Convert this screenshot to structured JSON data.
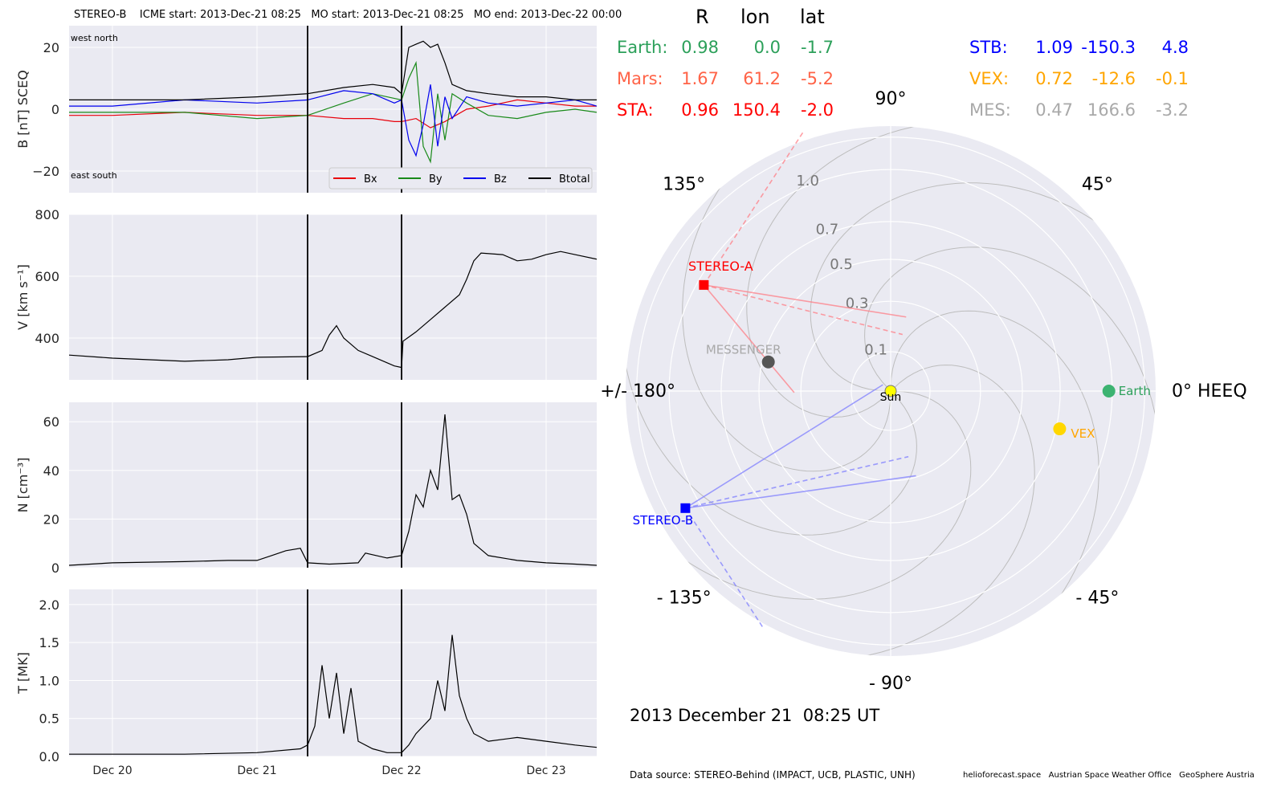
{
  "header_text": "STEREO-B    ICME start: 2013-Dec-21 08:25   MO start: 2013-Dec-21 08:25   MO end: 2013-Dec-22 00:00",
  "table": {
    "columns": [
      "R",
      "lon",
      "lat"
    ],
    "rows": [
      {
        "name": "Earth:",
        "r": "0.98",
        "lon": "0.0",
        "lat": "-1.7",
        "color": "#2ca05a"
      },
      {
        "name": "Mars:",
        "r": "1.67",
        "lon": "61.2",
        "lat": "-5.2",
        "color": "#ff6347"
      },
      {
        "name": "STA:",
        "r": "0.96",
        "lon": "150.4",
        "lat": "-2.0",
        "color": "#ff0000"
      },
      {
        "name": "STB:",
        "r": "1.09",
        "lon": "-150.3",
        "lat": "4.8",
        "color": "#0000ff"
      },
      {
        "name": "VEX:",
        "r": "0.72",
        "lon": "-12.6",
        "lat": "-0.1",
        "color": "#ffa500"
      },
      {
        "name": "MES:",
        "r": "0.47",
        "lon": "166.6",
        "lat": "-3.2",
        "color": "#a9a9a9"
      }
    ]
  },
  "date_label": "2013 December 21  08:25 UT",
  "footer": {
    "source": "Data source: STEREO-Behind (IMPACT, UCB, PLASTIC, UNH)",
    "credits": "helioforecast.space   Austrian Space Weather Office   GeoSphere Austria"
  },
  "chart_data": [
    {
      "type": "line",
      "panel": "magnetic field",
      "ylabel": "B [nT] SCEQ",
      "ylim": [
        -27,
        27
      ],
      "yticks": [
        {
          "v": 20,
          "t": "20"
        },
        {
          "v": 0,
          "t": "0"
        },
        {
          "v": -20,
          "t": "−20"
        }
      ],
      "xlim": [
        -0.3,
        3.35
      ],
      "xticks": [
        {
          "v": 0,
          "t": "Dec 20"
        },
        {
          "v": 1,
          "t": "Dec 21"
        },
        {
          "v": 2,
          "t": "Dec 22"
        },
        {
          "v": 3,
          "t": "Dec 23"
        }
      ],
      "vlines": [
        1.35,
        2.0
      ],
      "corner_labels": {
        "top_left": "west    north",
        "bottom_left": "east    south"
      },
      "legend": [
        "Bx",
        "By",
        "Bz",
        "Btotal"
      ],
      "series": [
        {
          "name": "Bx",
          "color": "#e8000b",
          "points": [
            [
              -0.3,
              -2
            ],
            [
              0,
              -2
            ],
            [
              0.5,
              -1
            ],
            [
              1.0,
              -2
            ],
            [
              1.35,
              -2
            ],
            [
              1.6,
              -3
            ],
            [
              1.8,
              -3
            ],
            [
              1.95,
              -4
            ],
            [
              2.0,
              -4
            ],
            [
              2.1,
              -3
            ],
            [
              2.2,
              -6
            ],
            [
              2.3,
              -4
            ],
            [
              2.45,
              0
            ],
            [
              2.6,
              1
            ],
            [
              2.8,
              3
            ],
            [
              3.0,
              2
            ],
            [
              3.2,
              1
            ],
            [
              3.35,
              1
            ]
          ]
        },
        {
          "name": "By",
          "color": "#1a8a1a",
          "points": [
            [
              -0.3,
              -1
            ],
            [
              0,
              -1
            ],
            [
              0.5,
              -1
            ],
            [
              1.0,
              -3
            ],
            [
              1.35,
              -2
            ],
            [
              1.6,
              2
            ],
            [
              1.8,
              5
            ],
            [
              2.0,
              3
            ],
            [
              2.05,
              10
            ],
            [
              2.1,
              15
            ],
            [
              2.15,
              -12
            ],
            [
              2.2,
              -17
            ],
            [
              2.25,
              5
            ],
            [
              2.3,
              -10
            ],
            [
              2.35,
              5
            ],
            [
              2.45,
              2
            ],
            [
              2.6,
              -2
            ],
            [
              2.8,
              -3
            ],
            [
              3.0,
              -1
            ],
            [
              3.2,
              0
            ],
            [
              3.35,
              -1
            ]
          ]
        },
        {
          "name": "Bz",
          "color": "#0000ee",
          "points": [
            [
              -0.3,
              1
            ],
            [
              0,
              1
            ],
            [
              0.5,
              3
            ],
            [
              1.0,
              2
            ],
            [
              1.35,
              3
            ],
            [
              1.6,
              6
            ],
            [
              1.8,
              5
            ],
            [
              1.95,
              2
            ],
            [
              2.0,
              3
            ],
            [
              2.05,
              -10
            ],
            [
              2.1,
              -15
            ],
            [
              2.15,
              -5
            ],
            [
              2.2,
              8
            ],
            [
              2.25,
              -12
            ],
            [
              2.3,
              4
            ],
            [
              2.35,
              -3
            ],
            [
              2.45,
              4
            ],
            [
              2.6,
              2
            ],
            [
              2.8,
              1
            ],
            [
              3.0,
              2
            ],
            [
              3.2,
              3
            ],
            [
              3.35,
              1
            ]
          ]
        },
        {
          "name": "Btotal",
          "color": "#000000",
          "points": [
            [
              -0.3,
              3
            ],
            [
              0,
              3
            ],
            [
              0.5,
              3
            ],
            [
              1.0,
              4
            ],
            [
              1.35,
              5
            ],
            [
              1.6,
              7
            ],
            [
              1.8,
              8
            ],
            [
              1.95,
              7
            ],
            [
              2.0,
              5
            ],
            [
              2.05,
              20
            ],
            [
              2.1,
              21
            ],
            [
              2.15,
              22
            ],
            [
              2.2,
              20
            ],
            [
              2.25,
              21
            ],
            [
              2.3,
              15
            ],
            [
              2.35,
              8
            ],
            [
              2.45,
              6
            ],
            [
              2.6,
              5
            ],
            [
              2.8,
              4
            ],
            [
              3.0,
              4
            ],
            [
              3.2,
              3
            ],
            [
              3.35,
              3
            ]
          ]
        }
      ]
    },
    {
      "type": "line",
      "panel": "speed",
      "ylabel": "V [km s⁻¹]",
      "ylim": [
        265,
        800
      ],
      "yticks": [
        {
          "v": 800,
          "t": "800"
        },
        {
          "v": 600,
          "t": "600"
        },
        {
          "v": 400,
          "t": "400"
        }
      ],
      "xlim": [
        -0.3,
        3.35
      ],
      "vlines": [
        1.35,
        2.0
      ],
      "series": [
        {
          "name": "V",
          "color": "#000000",
          "points": [
            [
              -0.3,
              345
            ],
            [
              0,
              335
            ],
            [
              0.5,
              325
            ],
            [
              0.8,
              330
            ],
            [
              1.0,
              338
            ],
            [
              1.35,
              340
            ],
            [
              1.45,
              360
            ],
            [
              1.5,
              410
            ],
            [
              1.55,
              440
            ],
            [
              1.6,
              400
            ],
            [
              1.7,
              360
            ],
            [
              1.8,
              340
            ],
            [
              1.9,
              320
            ],
            [
              1.95,
              310
            ],
            [
              2.0,
              305
            ],
            [
              2.01,
              390
            ],
            [
              2.1,
              420
            ],
            [
              2.2,
              460
            ],
            [
              2.3,
              500
            ],
            [
              2.4,
              540
            ],
            [
              2.45,
              590
            ],
            [
              2.5,
              650
            ],
            [
              2.55,
              675
            ],
            [
              2.7,
              670
            ],
            [
              2.8,
              650
            ],
            [
              2.9,
              655
            ],
            [
              3.0,
              670
            ],
            [
              3.1,
              680
            ],
            [
              3.2,
              670
            ],
            [
              3.35,
              655
            ]
          ]
        }
      ]
    },
    {
      "type": "line",
      "panel": "density",
      "ylabel": "N [cm⁻³]",
      "ylim": [
        0,
        68
      ],
      "yticks": [
        {
          "v": 60,
          "t": "60"
        },
        {
          "v": 40,
          "t": "40"
        },
        {
          "v": 20,
          "t": "20"
        },
        {
          "v": 0,
          "t": "0"
        }
      ],
      "xlim": [
        -0.3,
        3.35
      ],
      "vlines": [
        1.35,
        2.0
      ],
      "series": [
        {
          "name": "N",
          "color": "#000000",
          "points": [
            [
              -0.3,
              1
            ],
            [
              0,
              2
            ],
            [
              0.5,
              2.5
            ],
            [
              0.8,
              3
            ],
            [
              1.0,
              3
            ],
            [
              1.1,
              5
            ],
            [
              1.2,
              7
            ],
            [
              1.3,
              8
            ],
            [
              1.35,
              2
            ],
            [
              1.5,
              1.5
            ],
            [
              1.7,
              2
            ],
            [
              1.75,
              6
            ],
            [
              1.9,
              4
            ],
            [
              2.0,
              5
            ],
            [
              2.05,
              15
            ],
            [
              2.1,
              30
            ],
            [
              2.15,
              25
            ],
            [
              2.2,
              40
            ],
            [
              2.25,
              32
            ],
            [
              2.3,
              63
            ],
            [
              2.35,
              28
            ],
            [
              2.4,
              30
            ],
            [
              2.45,
              22
            ],
            [
              2.5,
              10
            ],
            [
              2.6,
              5
            ],
            [
              2.8,
              3
            ],
            [
              3.0,
              2
            ],
            [
              3.2,
              1.5
            ],
            [
              3.35,
              1
            ]
          ]
        }
      ]
    },
    {
      "type": "line",
      "panel": "temperature",
      "ylabel": "T [MK]",
      "ylim": [
        0,
        2.2
      ],
      "yticks": [
        {
          "v": 2.0,
          "t": "2.0"
        },
        {
          "v": 1.5,
          "t": "1.5"
        },
        {
          "v": 1.0,
          "t": "1.0"
        },
        {
          "v": 0.5,
          "t": "0.5"
        },
        {
          "v": 0.0,
          "t": "0.0"
        }
      ],
      "xlim": [
        -0.3,
        3.35
      ],
      "xticks": [
        {
          "v": 0,
          "t": "Dec 20"
        },
        {
          "v": 1,
          "t": "Dec 21"
        },
        {
          "v": 2,
          "t": "Dec 22"
        },
        {
          "v": 3,
          "t": "Dec 23"
        }
      ],
      "vlines": [
        1.35,
        2.0
      ],
      "series": [
        {
          "name": "T",
          "color": "#000000",
          "points": [
            [
              -0.3,
              0.03
            ],
            [
              0,
              0.03
            ],
            [
              0.5,
              0.03
            ],
            [
              1.0,
              0.05
            ],
            [
              1.3,
              0.1
            ],
            [
              1.35,
              0.15
            ],
            [
              1.4,
              0.4
            ],
            [
              1.45,
              1.2
            ],
            [
              1.5,
              0.5
            ],
            [
              1.55,
              1.1
            ],
            [
              1.6,
              0.3
            ],
            [
              1.65,
              0.9
            ],
            [
              1.7,
              0.2
            ],
            [
              1.8,
              0.1
            ],
            [
              1.9,
              0.05
            ],
            [
              2.0,
              0.05
            ],
            [
              2.05,
              0.15
            ],
            [
              2.1,
              0.3
            ],
            [
              2.2,
              0.5
            ],
            [
              2.25,
              1.0
            ],
            [
              2.3,
              0.6
            ],
            [
              2.35,
              1.6
            ],
            [
              2.4,
              0.8
            ],
            [
              2.45,
              0.5
            ],
            [
              2.5,
              0.3
            ],
            [
              2.6,
              0.2
            ],
            [
              2.8,
              0.25
            ],
            [
              3.0,
              0.2
            ],
            [
              3.2,
              0.15
            ],
            [
              3.35,
              0.12
            ]
          ]
        }
      ]
    },
    {
      "type": "scatter",
      "panel": "polar",
      "title": "0° HEEQ",
      "rticks": [
        {
          "v": 0.1,
          "t": "0.1"
        },
        {
          "v": 0.3,
          "t": "0.3"
        },
        {
          "v": 0.5,
          "t": "0.5"
        },
        {
          "v": 0.7,
          "t": "0.7"
        },
        {
          "v": 1.0,
          "t": "1.0"
        }
      ],
      "angle_labels": [
        {
          "deg": 0,
          "t": "0° HEEQ"
        },
        {
          "deg": 45,
          "t": "45°"
        },
        {
          "deg": 90,
          "t": "90°"
        },
        {
          "deg": 135,
          "t": "135°"
        },
        {
          "deg": 180,
          "t": "+/- 180°"
        },
        {
          "deg": -135,
          "t": "- 135°"
        },
        {
          "deg": -90,
          "t": "- 90°"
        },
        {
          "deg": -45,
          "t": "- 45°"
        }
      ],
      "points": [
        {
          "name": "Sun",
          "r": 0,
          "lon": 0,
          "color": "#ffff00",
          "marker": "circle"
        },
        {
          "name": "Earth",
          "r": 0.98,
          "lon": 0.0,
          "color": "#3cb371",
          "marker": "circle"
        },
        {
          "name": "VEX",
          "r": 0.72,
          "lon": -12.6,
          "color": "#ffd700",
          "marker": "circle"
        },
        {
          "name": "MESSENGER",
          "r": 0.47,
          "lon": 166.6,
          "color": "#555555",
          "marker": "circle"
        },
        {
          "name": "STEREO-A",
          "r": 0.96,
          "lon": 150.4,
          "color": "#ff0000",
          "marker": "square"
        },
        {
          "name": "STEREO-B",
          "r": 1.09,
          "lon": -150.3,
          "color": "#0000ff",
          "marker": "square"
        }
      ],
      "label_colors": {
        "Sun": "#000000",
        "Earth": "#2ca05a",
        "VEX": "#ffa500",
        "MESSENGER": "#a9a9a9",
        "STEREO-A": "#ff0000",
        "STEREO-B": "#0000ff"
      }
    }
  ]
}
